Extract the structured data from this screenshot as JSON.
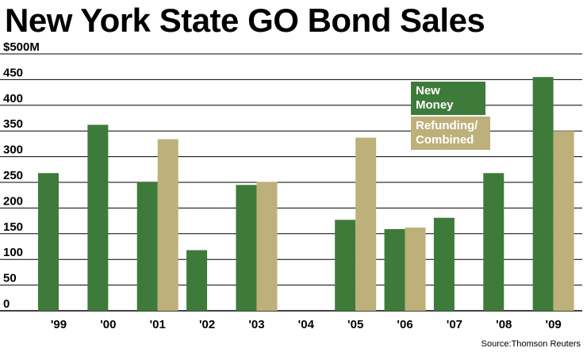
{
  "title": "New York State GO Bond Sales",
  "source": "Source:Thomson Reuters",
  "colors": {
    "new_money": "#3e7b3a",
    "refunding": "#bdb07a",
    "grid": "#000000"
  },
  "chart_data": {
    "type": "bar",
    "title": "New York State GO Bond Sales",
    "categories": [
      "'99",
      "'00",
      "'01",
      "'02",
      "'03",
      "'04",
      "'05",
      "'06",
      "'07",
      "'08",
      "'09"
    ],
    "series": [
      {
        "name": "New Money",
        "values": [
          268,
          362,
          250,
          118,
          245,
          0,
          177,
          159,
          181,
          268,
          455
        ]
      },
      {
        "name": "Refunding/\nCombined",
        "values": [
          0,
          0,
          334,
          0,
          251,
          0,
          337,
          162,
          0,
          0,
          350
        ]
      }
    ],
    "yticks": [
      "$500M",
      "450",
      "400",
      "350",
      "300",
      "250",
      "200",
      "150",
      "100",
      "50",
      "0"
    ],
    "ylim": [
      0,
      500
    ],
    "grid": true,
    "legend_position": "top-right"
  }
}
